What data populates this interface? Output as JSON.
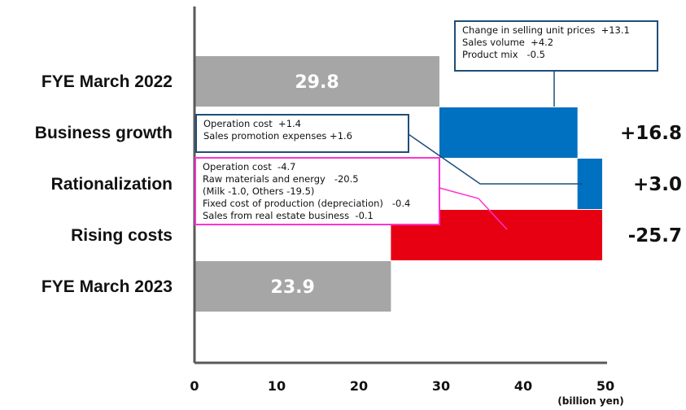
{
  "chart_data": {
    "type": "bar",
    "subtype": "waterfall",
    "orientation": "horizontal",
    "categories": [
      "FYE March 2022",
      "Business growth",
      "Rationalization",
      "Rising costs",
      "FYE March 2023"
    ],
    "bars": [
      {
        "category": "FYE March 2022",
        "kind": "total",
        "start": 0,
        "end": 29.8,
        "label": "29.8",
        "color": "#a6a6a6"
      },
      {
        "category": "Business growth",
        "kind": "delta",
        "start": 29.8,
        "end": 46.6,
        "label": "+16.8",
        "color": "#0070c0"
      },
      {
        "category": "Rationalization",
        "kind": "delta",
        "start": 46.6,
        "end": 49.6,
        "label": "+3.0",
        "color": "#0070c0"
      },
      {
        "category": "Rising costs",
        "kind": "delta",
        "start": 49.6,
        "end": 23.9,
        "label": "-25.7",
        "color": "#e60012"
      },
      {
        "category": "FYE March 2023",
        "kind": "total",
        "start": 0,
        "end": 23.9,
        "label": "23.9",
        "color": "#a6a6a6"
      }
    ],
    "x_ticks": [
      0,
      10,
      20,
      30,
      40,
      50
    ],
    "x_unit": "(billion yen)",
    "xlim": [
      0,
      50
    ],
    "grid": false,
    "annotations": [
      {
        "target": "Business growth",
        "border": "#1f4e79",
        "lines": [
          "Change in selling unit prices  +13.1",
          "Sales volume  +4.2",
          "Product mix   -0.5"
        ]
      },
      {
        "target": "Rationalization",
        "border": "#1f4e79",
        "lines": [
          "Operation cost  +1.4",
          "Sales promotion expenses +1.6"
        ]
      },
      {
        "target": "Rising costs",
        "border": "#ff33cc",
        "lines": [
          "Operation cost  -4.7",
          "Raw materials and energy   -20.5",
          "(Milk -1.0, Others -19.5)",
          "Fixed cost of production (depreciation)   -0.4",
          "Sales from real estate business  -0.1"
        ]
      }
    ]
  }
}
